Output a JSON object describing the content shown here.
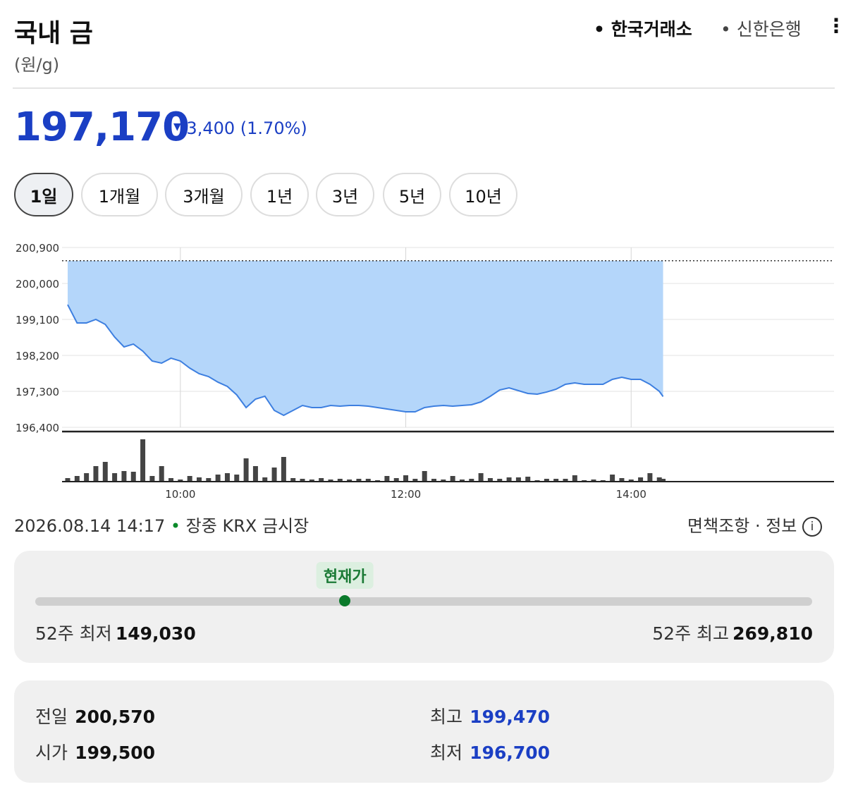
{
  "header": {
    "title": "국내 금",
    "unit": "(원/g)",
    "sources": [
      "한국거래소",
      "신한은행"
    ]
  },
  "price": {
    "current": {
      "value": 197170,
      "label": "197,170"
    },
    "change": "3,400",
    "change_pct": "(1.70%)"
  },
  "tabs": [
    "1일",
    "1개월",
    "3개월",
    "1년",
    "3년",
    "5년",
    "10년"
  ],
  "chart_data": {
    "type": "line",
    "color": "#3d7fe0",
    "fill": "#b4d6fa",
    "volume_color": "#444444",
    "grid": true,
    "x": [
      "09:00",
      "09:05",
      "09:10",
      "09:15",
      "09:20",
      "09:25",
      "09:30",
      "09:35",
      "09:40",
      "09:45",
      "09:50",
      "09:55",
      "10:00",
      "10:05",
      "10:10",
      "10:15",
      "10:20",
      "10:25",
      "10:30",
      "10:35",
      "10:40",
      "10:45",
      "10:50",
      "10:55",
      "11:00",
      "11:05",
      "11:10",
      "11:15",
      "11:20",
      "11:25",
      "11:30",
      "11:35",
      "11:40",
      "11:45",
      "11:50",
      "11:55",
      "12:00",
      "12:05",
      "12:10",
      "12:15",
      "12:20",
      "12:25",
      "12:30",
      "12:35",
      "12:40",
      "12:45",
      "12:50",
      "12:55",
      "13:00",
      "13:05",
      "13:10",
      "13:15",
      "13:20",
      "13:25",
      "13:30",
      "13:35",
      "13:40",
      "13:45",
      "13:50",
      "13:55",
      "14:00",
      "14:05",
      "14:10",
      "14:15",
      "14:17"
    ],
    "values": [
      199470,
      199012,
      199012,
      199100,
      198977,
      198659,
      198412,
      198483,
      198306,
      198059,
      198006,
      198130,
      198059,
      197882,
      197741,
      197670,
      197530,
      197424,
      197212,
      196894,
      197106,
      197177,
      196824,
      196700,
      196824,
      196947,
      196894,
      196894,
      196947,
      196929,
      196947,
      196947,
      196929,
      196894,
      196859,
      196824,
      196788,
      196788,
      196894,
      196929,
      196947,
      196929,
      196947,
      196965,
      197035,
      197177,
      197335,
      197388,
      197318,
      197247,
      197230,
      197283,
      197353,
      197477,
      197512,
      197477,
      197477,
      197477,
      197600,
      197653,
      197600,
      197600,
      197477,
      197300,
      197170
    ],
    "volume": [
      5,
      8,
      12,
      22,
      28,
      12,
      15,
      14,
      60,
      8,
      22,
      5,
      3,
      8,
      6,
      5,
      10,
      12,
      10,
      33,
      22,
      6,
      20,
      35,
      5,
      4,
      3,
      5,
      3,
      4,
      3,
      4,
      4,
      2,
      8,
      5,
      9,
      4,
      15,
      4,
      3,
      8,
      3,
      4,
      12,
      5,
      4,
      6,
      6,
      7,
      2,
      4,
      4,
      4,
      9,
      2,
      3,
      2,
      10,
      5,
      3,
      6,
      12,
      6,
      4
    ],
    "vlim": [
      0,
      62
    ],
    "reference_line": 200570,
    "ylim": [
      196400,
      200900
    ],
    "yticks": [
      {
        "value": 196400,
        "label": "196,400"
      },
      {
        "value": 197300,
        "label": "197,300"
      },
      {
        "value": 198200,
        "label": "198,200"
      },
      {
        "value": 199100,
        "label": "199,100"
      },
      {
        "value": 200000,
        "label": "200,000"
      },
      {
        "value": 200900,
        "label": "200,900"
      }
    ],
    "xlim": [
      "08:57",
      "15:48"
    ],
    "xticks": [
      "10:00",
      "12:00",
      "14:00"
    ]
  },
  "status": {
    "timestamp": "2026.08.14 14:17",
    "state": "장중",
    "market": "KRX 금시장",
    "links": "면책조항 · 정보"
  },
  "range": {
    "marker": "현재가",
    "low_label": "52주 최저",
    "low": {
      "value": 149030,
      "label": "149,030"
    },
    "high_label": "52주 최고",
    "high": {
      "value": 269810,
      "label": "269,810"
    }
  },
  "stats": [
    {
      "label": "전일",
      "value": "200,570"
    },
    {
      "label": "최고",
      "value": "199,470"
    },
    {
      "label": "시가",
      "value": "199,500"
    },
    {
      "label": "최저",
      "value": "196,700"
    }
  ]
}
